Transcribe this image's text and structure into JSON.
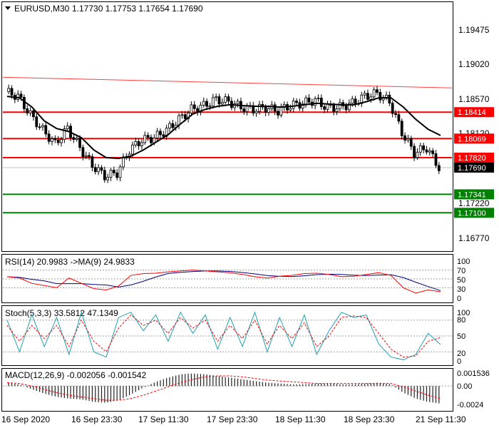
{
  "window": {
    "symbol_timeframe": "EURUSD,M30",
    "ohlc": "1.17730  1.17753  1.17654  1.17690"
  },
  "colors": {
    "resistance": "#ff0000",
    "support": "#008000",
    "trendline": "#ff4040",
    "price_tag": "#000000",
    "ma": "#000000",
    "candle": "#000000"
  },
  "main_chart": {
    "y_ticks": [
      "1.19475",
      "1.19020",
      "1.18570",
      "1.18120",
      "1.17220",
      "1.16770"
    ],
    "levels": [
      {
        "label": "1.18414",
        "type": "resistance",
        "value": 1.18414
      },
      {
        "label": "1.18069",
        "type": "resistance",
        "value": 1.18069
      },
      {
        "label": "1.17820",
        "type": "resistance",
        "value": 1.1782
      },
      {
        "label": "1.17341",
        "type": "support",
        "value": 1.17341
      },
      {
        "label": "1.17100",
        "type": "support",
        "value": 1.171
      }
    ],
    "current_price": {
      "label": "1.17690",
      "value": 1.1769
    }
  },
  "rsi_panel": {
    "title": "RSI(14) 20.9983  ->MA(9) 24.9833",
    "y_ticks": [
      "100",
      "70",
      "50",
      "30",
      "0"
    ]
  },
  "stoch_panel": {
    "title": "Stoch(5,3,3) 33.5812 47.1349",
    "y_ticks": [
      "100",
      "80",
      "50",
      "20",
      "0"
    ]
  },
  "macd_panel": {
    "title": "MACD(12,26,9) -0.002056 -0.001542",
    "y_ticks": [
      "0.001536",
      "0.00",
      "-0.0024"
    ]
  },
  "x_axis": {
    "labels": [
      "16 Sep 2020",
      "16 Sep 23:30",
      "17 Sep 11:30",
      "17 Sep 23:30",
      "18 Sep 11:30",
      "18 Sep 23:30",
      "21 Sep 11:30"
    ]
  },
  "chart_data": {
    "type": "candlestick",
    "symbol": "EURUSD",
    "timeframe": "M30",
    "x": [
      "16 Sep 2020",
      "16 Sep 23:30",
      "17 Sep 11:30",
      "17 Sep 23:30",
      "18 Sep 11:30",
      "18 Sep 23:30",
      "21 Sep 11:30"
    ],
    "close_path": [
      1.1868,
      1.1862,
      1.1838,
      1.1818,
      1.18,
      1.182,
      1.1795,
      1.1772,
      1.1758,
      1.1762,
      1.1792,
      1.1805,
      1.1808,
      1.1818,
      1.1832,
      1.1845,
      1.185,
      1.1858,
      1.1855,
      1.1848,
      1.1845,
      1.1847,
      1.1843,
      1.185,
      1.1853,
      1.1857,
      1.1847,
      1.1848,
      1.1853,
      1.1862,
      1.1866,
      1.1855,
      1.1815,
      1.1788,
      1.1795,
      1.1769
    ],
    "ma_path": [
      1.1862,
      1.186,
      1.1848,
      1.183,
      1.182,
      1.1816,
      1.1808,
      1.1792,
      1.1782,
      1.1781,
      1.1784,
      1.1792,
      1.1802,
      1.1812,
      1.1826,
      1.1839,
      1.1845,
      1.1849,
      1.1851,
      1.185,
      1.1849,
      1.1849,
      1.1848,
      1.1849,
      1.1851,
      1.1853,
      1.1852,
      1.1851,
      1.1851,
      1.1855,
      1.186,
      1.186,
      1.1848,
      1.1832,
      1.1819,
      1.1811
    ],
    "trendline": {
      "start": 1.1887,
      "end": 1.1873
    },
    "levels": [
      1.18414,
      1.18069,
      1.1782,
      1.17341,
      1.171
    ],
    "ylim": [
      1.166,
      1.1985
    ],
    "rsi": {
      "rsi_last": 20.9983,
      "ma_last": 24.9833,
      "values": [
        55,
        52,
        40,
        35,
        30,
        52,
        40,
        28,
        25,
        34,
        58,
        62,
        63,
        66,
        68,
        70,
        68,
        66,
        64,
        60,
        55,
        52,
        56,
        58,
        62,
        63,
        60,
        55,
        56,
        60,
        64,
        58,
        30,
        18,
        25,
        21
      ],
      "ylim": [
        0,
        100
      ]
    },
    "stoch": {
      "k_last": 33.5812,
      "d_last": 47.1349,
      "k": [
        80,
        20,
        90,
        30,
        85,
        15,
        95,
        20,
        10,
        85,
        95,
        60,
        90,
        40,
        95,
        55,
        90,
        25,
        85,
        30,
        95,
        20,
        85,
        30,
        90,
        15,
        60,
        95,
        85,
        90,
        35,
        10,
        5,
        15,
        55,
        34
      ],
      "d": [
        70,
        40,
        70,
        45,
        70,
        30,
        80,
        40,
        20,
        65,
        90,
        70,
        80,
        55,
        85,
        65,
        80,
        40,
        70,
        45,
        80,
        35,
        70,
        45,
        75,
        30,
        50,
        85,
        88,
        85,
        55,
        25,
        10,
        12,
        40,
        47
      ],
      "ylim": [
        0,
        100
      ]
    },
    "macd": {
      "macd_last": -0.002056,
      "signal_last": -0.001542,
      "hist": [
        0.0004,
        0.0002,
        -0.0004,
        -0.0009,
        -0.0013,
        -0.0015,
        -0.0016,
        -0.0019,
        -0.002,
        -0.0017,
        -0.001,
        -0.0002,
        0.0005,
        0.001,
        0.0014,
        0.0015,
        0.0014,
        0.0012,
        0.001,
        0.0008,
        0.0006,
        0.0004,
        0.0003,
        0.0002,
        0.0002,
        0.0003,
        0.0003,
        0.0002,
        0.0002,
        0.0003,
        0.0004,
        0.0002,
        -0.0008,
        -0.0015,
        -0.0019,
        -0.0021
      ],
      "signal": [
        0.0004,
        0.0003,
        0.0,
        -0.0004,
        -0.0008,
        -0.0011,
        -0.0013,
        -0.0015,
        -0.0017,
        -0.0017,
        -0.0015,
        -0.0011,
        -0.0006,
        -0.0001,
        0.0004,
        0.0008,
        0.0011,
        0.0012,
        0.0012,
        0.0011,
        0.0009,
        0.0007,
        0.0006,
        0.0005,
        0.0004,
        0.0003,
        0.0003,
        0.0003,
        0.0003,
        0.0003,
        0.0003,
        0.0003,
        -0.0001,
        -0.0006,
        -0.0011,
        -0.0015
      ],
      "ylim": [
        -0.0028,
        0.0018
      ]
    }
  }
}
